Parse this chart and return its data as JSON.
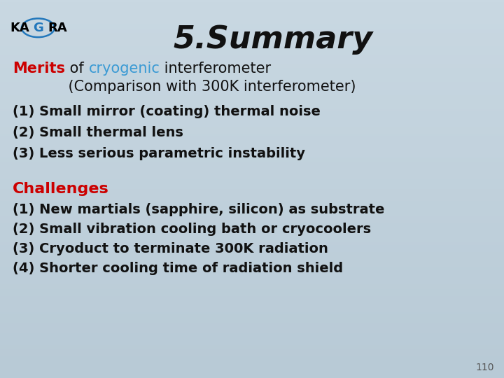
{
  "title": "5.Summary",
  "title_fontsize": 32,
  "title_style": "italic",
  "title_weight": "bold",
  "title_color": "#111111",
  "bg_color": "#bfcdd8",
  "page_number": "110",
  "subtitle_line1_parts": [
    {
      "text": "Merits",
      "color": "#cc0000",
      "weight": "bold"
    },
    {
      "text": " of ",
      "color": "#111111",
      "weight": "normal"
    },
    {
      "text": "cryogenic",
      "color": "#3a9ad4",
      "weight": "normal"
    },
    {
      "text": " interferometer",
      "color": "#111111",
      "weight": "normal"
    }
  ],
  "subtitle_line2": "            (Comparison with 300K interferometer)",
  "merits": [
    "(1) Small mirror (coating) thermal noise",
    "(2) Small thermal lens",
    "(3) Less serious parametric instability"
  ],
  "challenges_label": "Challenges",
  "challenges_label_color": "#cc0000",
  "challenges": [
    "(1) New martials (sapphire, silicon) as substrate",
    "(2) Small vibration cooling bath or cryocoolers",
    "(3) Cryoduct to terminate 300K radiation",
    "(4) Shorter cooling time of radiation shield"
  ],
  "text_color": "#111111",
  "merit_fontsize": 14,
  "challenge_fontsize": 14,
  "subtitle_fontsize": 15
}
